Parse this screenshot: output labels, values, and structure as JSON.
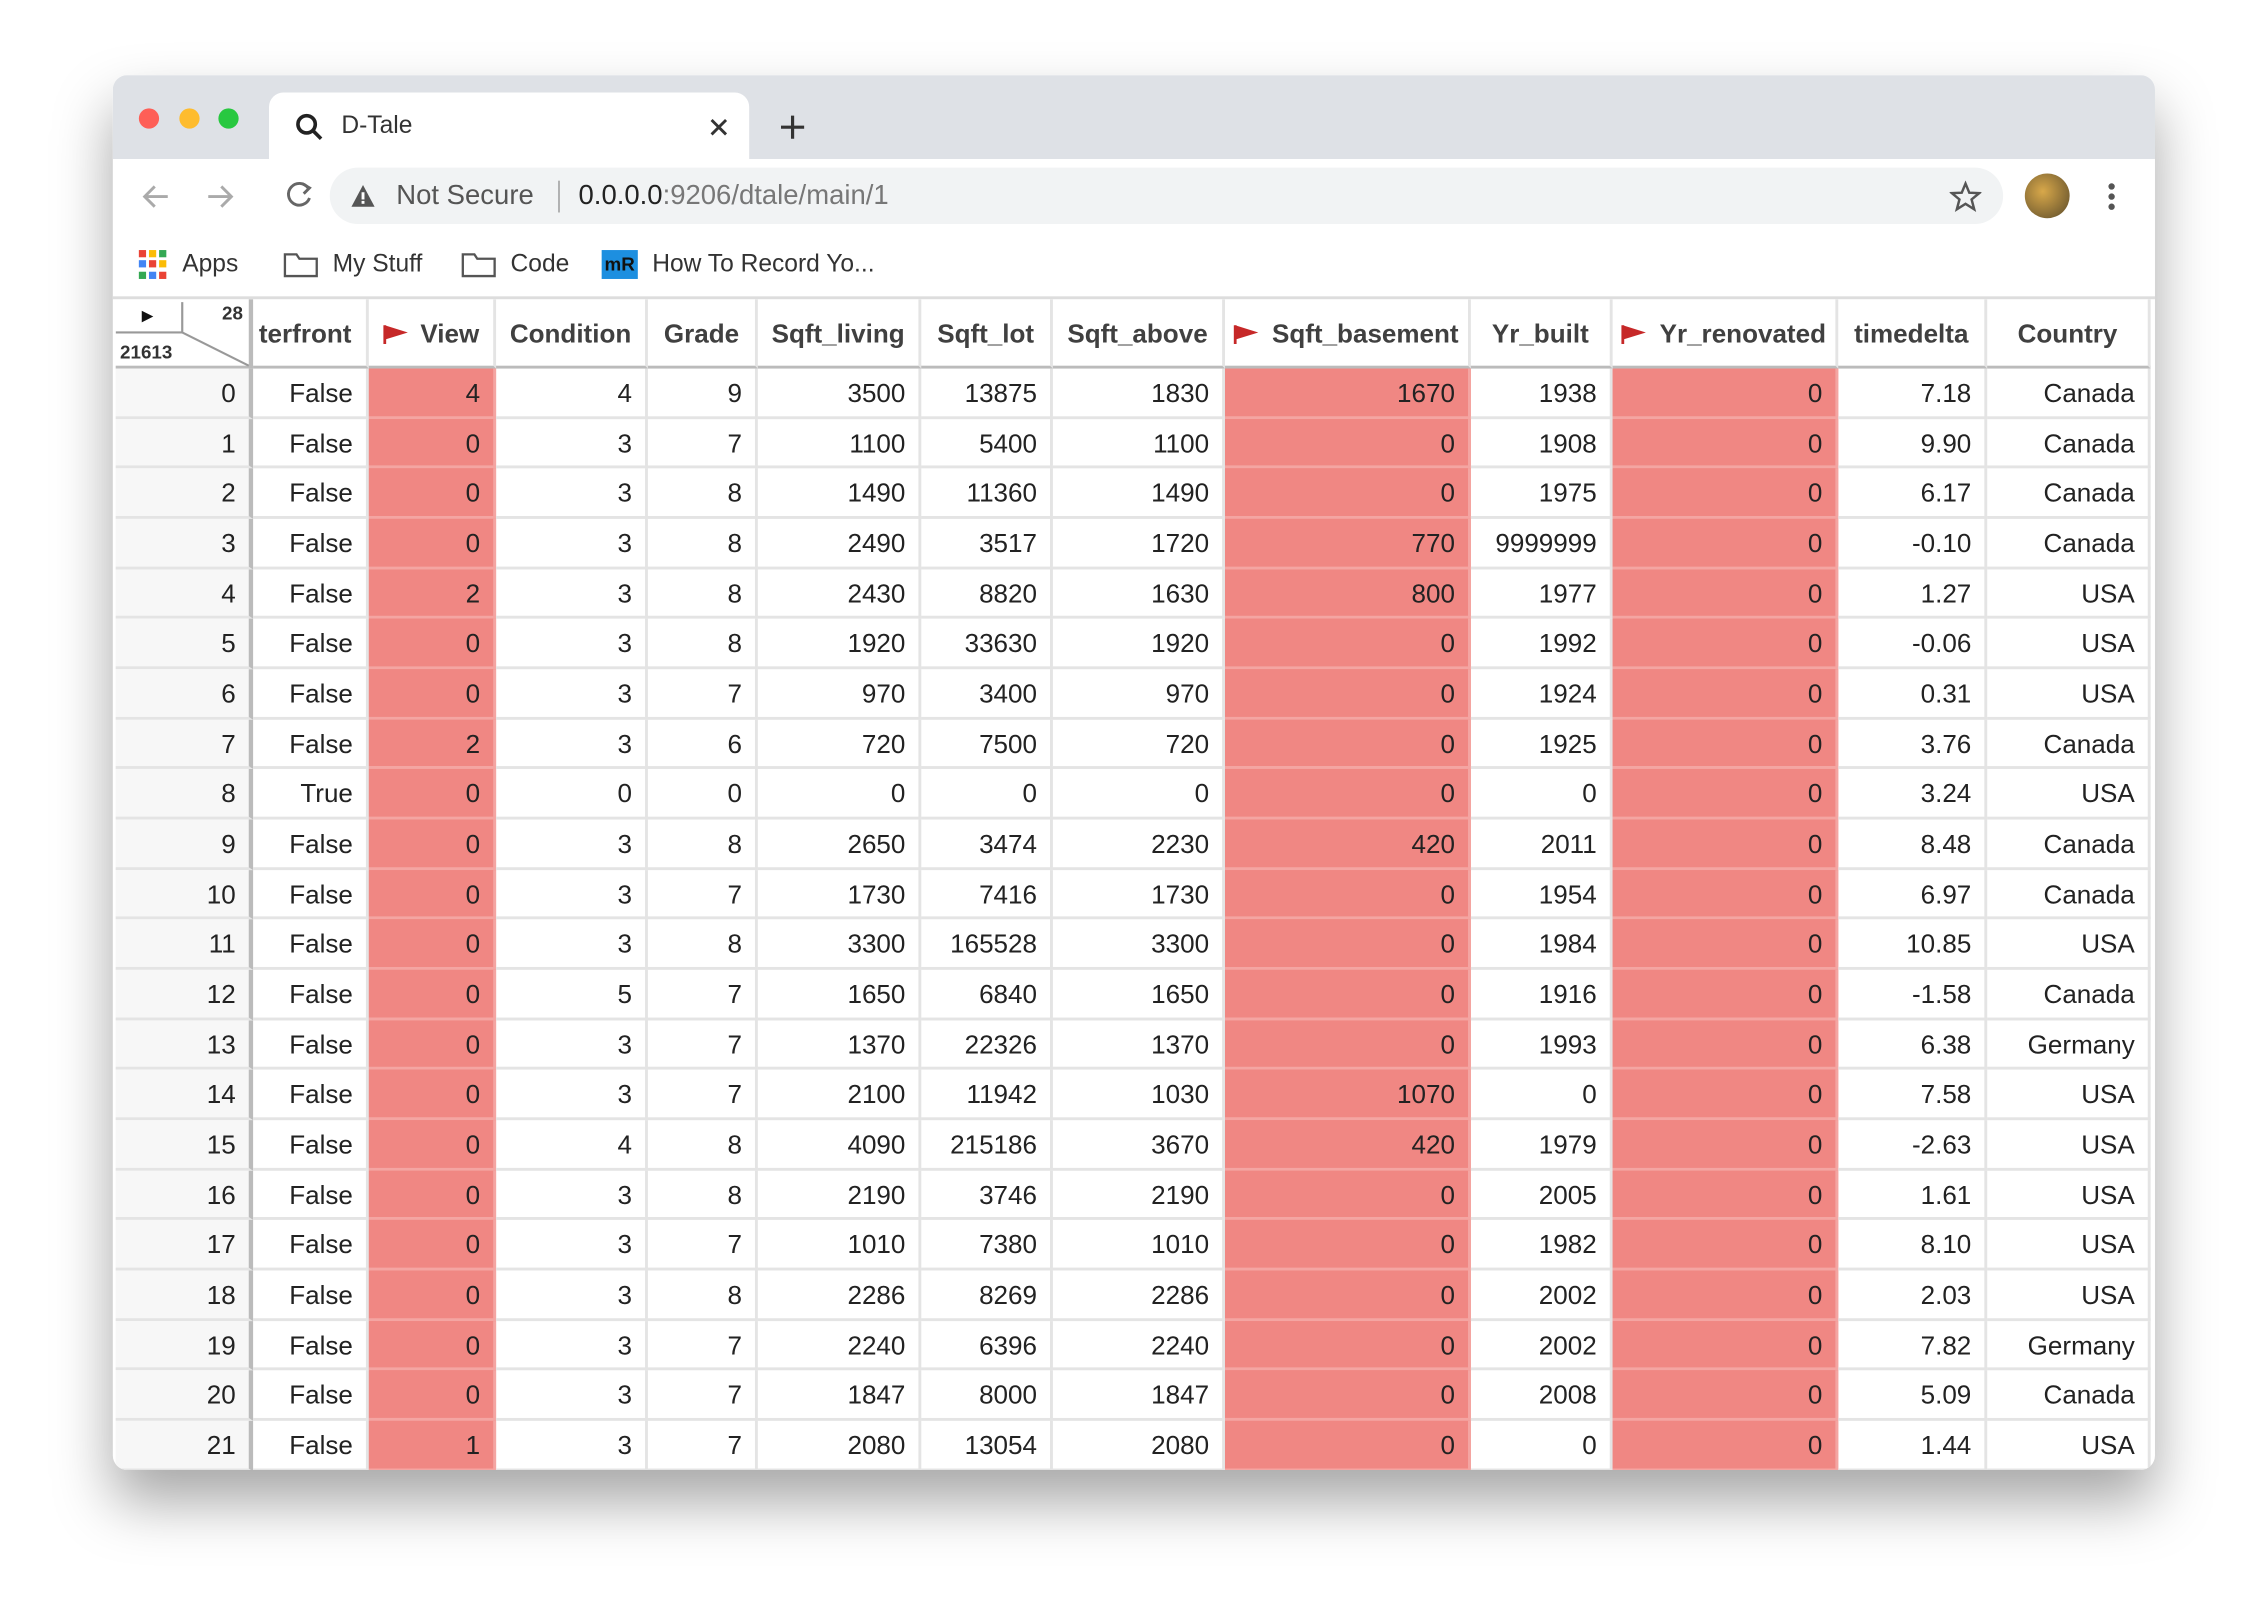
{
  "browser": {
    "tab_title": "D-Tale",
    "security": "Not Secure",
    "url_host": "0.0.0.0",
    "url_path": ":9206/dtale/main/1",
    "bookmarks": [
      {
        "icon": null,
        "label": "Apps"
      },
      {
        "icon": null,
        "label": "My Stuff"
      },
      {
        "icon": null,
        "label": "Code"
      },
      {
        "icon": "mR",
        "label": "How To Record Yo..."
      }
    ]
  },
  "table": {
    "column_count": "28",
    "row_count": "21613",
    "highlight_color": "#f08783",
    "columns": [
      {
        "name": "terfront",
        "flagged": false
      },
      {
        "name": "View",
        "flagged": true
      },
      {
        "name": "Condition",
        "flagged": false
      },
      {
        "name": "Grade",
        "flagged": false
      },
      {
        "name": "Sqft_living",
        "flagged": false
      },
      {
        "name": "Sqft_lot",
        "flagged": false
      },
      {
        "name": "Sqft_above",
        "flagged": false
      },
      {
        "name": "Sqft_basement",
        "flagged": true
      },
      {
        "name": "Yr_built",
        "flagged": false
      },
      {
        "name": "Yr_renovated",
        "flagged": true
      },
      {
        "name": "timedelta",
        "flagged": false
      },
      {
        "name": "Country",
        "flagged": false
      }
    ],
    "rows": [
      [
        "0",
        "False",
        "4",
        "4",
        "9",
        "3500",
        "13875",
        "1830",
        "1670",
        "1938",
        "0",
        "7.18",
        "Canada"
      ],
      [
        "1",
        "False",
        "0",
        "3",
        "7",
        "1100",
        "5400",
        "1100",
        "0",
        "1908",
        "0",
        "9.90",
        "Canada"
      ],
      [
        "2",
        "False",
        "0",
        "3",
        "8",
        "1490",
        "11360",
        "1490",
        "0",
        "1975",
        "0",
        "6.17",
        "Canada"
      ],
      [
        "3",
        "False",
        "0",
        "3",
        "8",
        "2490",
        "3517",
        "1720",
        "770",
        "9999999",
        "0",
        "-0.10",
        "Canada"
      ],
      [
        "4",
        "False",
        "2",
        "3",
        "8",
        "2430",
        "8820",
        "1630",
        "800",
        "1977",
        "0",
        "1.27",
        "USA"
      ],
      [
        "5",
        "False",
        "0",
        "3",
        "8",
        "1920",
        "33630",
        "1920",
        "0",
        "1992",
        "0",
        "-0.06",
        "USA"
      ],
      [
        "6",
        "False",
        "0",
        "3",
        "7",
        "970",
        "3400",
        "970",
        "0",
        "1924",
        "0",
        "0.31",
        "USA"
      ],
      [
        "7",
        "False",
        "2",
        "3",
        "6",
        "720",
        "7500",
        "720",
        "0",
        "1925",
        "0",
        "3.76",
        "Canada"
      ],
      [
        "8",
        "True",
        "0",
        "0",
        "0",
        "0",
        "0",
        "0",
        "0",
        "0",
        "0",
        "3.24",
        "USA"
      ],
      [
        "9",
        "False",
        "0",
        "3",
        "8",
        "2650",
        "3474",
        "2230",
        "420",
        "2011",
        "0",
        "8.48",
        "Canada"
      ],
      [
        "10",
        "False",
        "0",
        "3",
        "7",
        "1730",
        "7416",
        "1730",
        "0",
        "1954",
        "0",
        "6.97",
        "Canada"
      ],
      [
        "11",
        "False",
        "0",
        "3",
        "8",
        "3300",
        "165528",
        "3300",
        "0",
        "1984",
        "0",
        "10.85",
        "USA"
      ],
      [
        "12",
        "False",
        "0",
        "5",
        "7",
        "1650",
        "6840",
        "1650",
        "0",
        "1916",
        "0",
        "-1.58",
        "Canada"
      ],
      [
        "13",
        "False",
        "0",
        "3",
        "7",
        "1370",
        "22326",
        "1370",
        "0",
        "1993",
        "0",
        "6.38",
        "Germany"
      ],
      [
        "14",
        "False",
        "0",
        "3",
        "7",
        "2100",
        "11942",
        "1030",
        "1070",
        "0",
        "0",
        "7.58",
        "USA"
      ],
      [
        "15",
        "False",
        "0",
        "4",
        "8",
        "4090",
        "215186",
        "3670",
        "420",
        "1979",
        "0",
        "-2.63",
        "USA"
      ],
      [
        "16",
        "False",
        "0",
        "3",
        "8",
        "2190",
        "3746",
        "2190",
        "0",
        "2005",
        "0",
        "1.61",
        "USA"
      ],
      [
        "17",
        "False",
        "0",
        "3",
        "7",
        "1010",
        "7380",
        "1010",
        "0",
        "1982",
        "0",
        "8.10",
        "USA"
      ],
      [
        "18",
        "False",
        "0",
        "3",
        "8",
        "2286",
        "8269",
        "2286",
        "0",
        "2002",
        "0",
        "2.03",
        "USA"
      ],
      [
        "19",
        "False",
        "0",
        "3",
        "7",
        "2240",
        "6396",
        "2240",
        "0",
        "2002",
        "0",
        "7.82",
        "Germany"
      ],
      [
        "20",
        "False",
        "0",
        "3",
        "7",
        "1847",
        "8000",
        "1847",
        "0",
        "2008",
        "0",
        "5.09",
        "Canada"
      ],
      [
        "21",
        "False",
        "1",
        "3",
        "7",
        "2080",
        "13054",
        "2080",
        "0",
        "0",
        "0",
        "1.44",
        "USA"
      ]
    ]
  }
}
